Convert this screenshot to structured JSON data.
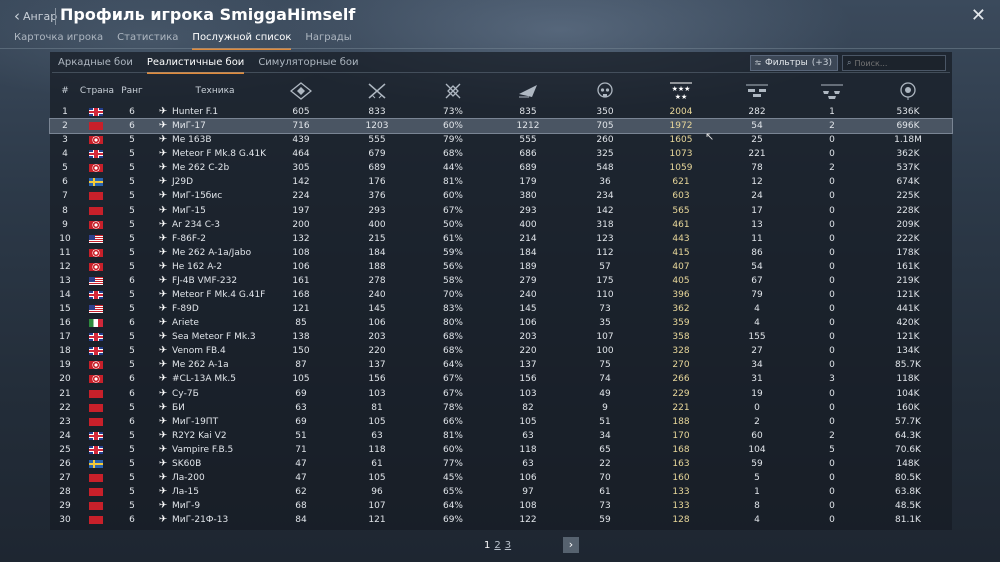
{
  "header": {
    "back_label": "Ангар",
    "title": "Профиль игрока SmiggaHimself",
    "close_icon": "close-icon"
  },
  "tabs": [
    {
      "label": "Карточка игрока",
      "active": false
    },
    {
      "label": "Статистика",
      "active": false
    },
    {
      "label": "Послужной список",
      "active": true
    },
    {
      "label": "Награды",
      "active": false
    }
  ],
  "subtabs": [
    {
      "label": "Аркадные бои",
      "active": false
    },
    {
      "label": "Реалистичные бои",
      "active": true
    },
    {
      "label": "Симуляторные бои",
      "active": false
    }
  ],
  "filter": {
    "label": "Фильтры",
    "count": "(+3)"
  },
  "search": {
    "placeholder": "Поиск..."
  },
  "columns": {
    "num": "#",
    "country": "Страна",
    "rank": "Ранг",
    "vehicle": "Техника",
    "icons": [
      "battles-icon",
      "missions-won-icon",
      "win-rate-icon",
      "respawns-icon",
      "deaths-icon",
      "air-kills-icon",
      "ground-kills-icon",
      "naval-kills-icon",
      "activity-icon"
    ]
  },
  "rows": [
    {
      "num": "1",
      "flag": "uk",
      "rank": "6",
      "name": "Hunter F.1",
      "v": [
        "605",
        "833",
        "73%",
        "835",
        "350",
        "2004",
        "282",
        "1",
        "536K"
      ]
    },
    {
      "num": "2",
      "flag": "ussr",
      "rank": "6",
      "name": "МиГ-17",
      "v": [
        "716",
        "1203",
        "60%",
        "1212",
        "705",
        "1972",
        "54",
        "2",
        "696K"
      ],
      "selected": true
    },
    {
      "num": "3",
      "flag": "de",
      "rank": "5",
      "name": "Me 163B",
      "v": [
        "439",
        "555",
        "79%",
        "555",
        "260",
        "1605",
        "25",
        "0",
        "1.18M"
      ]
    },
    {
      "num": "4",
      "flag": "uk",
      "rank": "5",
      "name": "Meteor F Mk.8 G.41K",
      "v": [
        "464",
        "679",
        "68%",
        "686",
        "325",
        "1073",
        "221",
        "0",
        "362K"
      ]
    },
    {
      "num": "5",
      "flag": "de",
      "rank": "5",
      "name": "Me 262 C-2b",
      "v": [
        "305",
        "689",
        "44%",
        "689",
        "548",
        "1059",
        "78",
        "2",
        "537K"
      ]
    },
    {
      "num": "6",
      "flag": "se",
      "rank": "5",
      "name": "J29D",
      "v": [
        "142",
        "176",
        "81%",
        "179",
        "36",
        "621",
        "12",
        "0",
        "674K"
      ]
    },
    {
      "num": "7",
      "flag": "ussr",
      "rank": "5",
      "name": "МиГ-15бис",
      "v": [
        "224",
        "376",
        "60%",
        "380",
        "234",
        "603",
        "24",
        "0",
        "225K"
      ]
    },
    {
      "num": "8",
      "flag": "ussr",
      "rank": "5",
      "name": "МиГ-15",
      "v": [
        "197",
        "293",
        "67%",
        "293",
        "142",
        "565",
        "17",
        "0",
        "228K"
      ]
    },
    {
      "num": "9",
      "flag": "de",
      "rank": "5",
      "name": "Ar 234 C-3",
      "v": [
        "200",
        "400",
        "50%",
        "400",
        "318",
        "461",
        "13",
        "0",
        "209K"
      ]
    },
    {
      "num": "10",
      "flag": "us",
      "rank": "5",
      "name": "F-86F-2",
      "v": [
        "132",
        "215",
        "61%",
        "214",
        "123",
        "443",
        "11",
        "0",
        "222K"
      ]
    },
    {
      "num": "11",
      "flag": "de",
      "rank": "5",
      "name": "Me 262 A-1a/Jabo",
      "v": [
        "108",
        "184",
        "59%",
        "184",
        "112",
        "415",
        "86",
        "0",
        "178K"
      ]
    },
    {
      "num": "12",
      "flag": "de",
      "rank": "5",
      "name": "He 162 A-2",
      "v": [
        "106",
        "188",
        "56%",
        "189",
        "57",
        "407",
        "54",
        "0",
        "161K"
      ]
    },
    {
      "num": "13",
      "flag": "us",
      "rank": "6",
      "name": "FJ-4B VMF-232",
      "v": [
        "161",
        "278",
        "58%",
        "279",
        "175",
        "405",
        "67",
        "0",
        "219K"
      ]
    },
    {
      "num": "14",
      "flag": "uk",
      "rank": "5",
      "name": "Meteor F Mk.4 G.41F",
      "v": [
        "168",
        "240",
        "70%",
        "240",
        "110",
        "396",
        "79",
        "0",
        "121K"
      ]
    },
    {
      "num": "15",
      "flag": "us",
      "rank": "5",
      "name": "F-89D",
      "v": [
        "121",
        "145",
        "83%",
        "145",
        "73",
        "362",
        "4",
        "0",
        "441K"
      ]
    },
    {
      "num": "16",
      "flag": "it",
      "rank": "6",
      "name": "Ariete",
      "v": [
        "85",
        "106",
        "80%",
        "106",
        "35",
        "359",
        "4",
        "0",
        "420K"
      ]
    },
    {
      "num": "17",
      "flag": "uk",
      "rank": "5",
      "name": "Sea Meteor F Mk.3",
      "v": [
        "138",
        "203",
        "68%",
        "203",
        "107",
        "358",
        "155",
        "0",
        "121K"
      ]
    },
    {
      "num": "18",
      "flag": "uk",
      "rank": "5",
      "name": "Venom FB.4",
      "v": [
        "150",
        "220",
        "68%",
        "220",
        "100",
        "328",
        "27",
        "0",
        "134K"
      ]
    },
    {
      "num": "19",
      "flag": "de",
      "rank": "5",
      "name": "Me 262 A-1a",
      "v": [
        "87",
        "137",
        "64%",
        "137",
        "75",
        "270",
        "34",
        "0",
        "85.7K"
      ]
    },
    {
      "num": "20",
      "flag": "de",
      "rank": "6",
      "name": "#CL-13A Mk.5",
      "v": [
        "105",
        "156",
        "67%",
        "156",
        "74",
        "266",
        "31",
        "3",
        "118K"
      ]
    },
    {
      "num": "21",
      "flag": "ussr",
      "rank": "6",
      "name": "Су-7Б",
      "v": [
        "69",
        "103",
        "67%",
        "103",
        "49",
        "229",
        "19",
        "0",
        "104K"
      ]
    },
    {
      "num": "22",
      "flag": "ussr",
      "rank": "5",
      "name": "БИ",
      "v": [
        "63",
        "81",
        "78%",
        "82",
        "9",
        "221",
        "0",
        "0",
        "160K"
      ]
    },
    {
      "num": "23",
      "flag": "ussr",
      "rank": "6",
      "name": "МиГ-19ПТ",
      "v": [
        "69",
        "105",
        "66%",
        "105",
        "51",
        "188",
        "2",
        "0",
        "57.7K"
      ]
    },
    {
      "num": "24",
      "flag": "uk",
      "rank": "5",
      "name": "R2Y2 Kai V2",
      "v": [
        "51",
        "63",
        "81%",
        "63",
        "34",
        "170",
        "60",
        "2",
        "64.3K"
      ]
    },
    {
      "num": "25",
      "flag": "uk",
      "rank": "5",
      "name": "Vampire F.B.5",
      "v": [
        "71",
        "118",
        "60%",
        "118",
        "65",
        "168",
        "104",
        "5",
        "70.6K"
      ]
    },
    {
      "num": "26",
      "flag": "se",
      "rank": "5",
      "name": "SK60B",
      "v": [
        "47",
        "61",
        "77%",
        "63",
        "22",
        "163",
        "59",
        "0",
        "148K"
      ]
    },
    {
      "num": "27",
      "flag": "ussr",
      "rank": "5",
      "name": "Ла-200",
      "v": [
        "47",
        "105",
        "45%",
        "106",
        "70",
        "160",
        "5",
        "0",
        "80.5K"
      ]
    },
    {
      "num": "28",
      "flag": "ussr",
      "rank": "5",
      "name": "Ла-15",
      "v": [
        "62",
        "96",
        "65%",
        "97",
        "61",
        "133",
        "1",
        "0",
        "63.8K"
      ]
    },
    {
      "num": "29",
      "flag": "ussr",
      "rank": "5",
      "name": "МиГ-9",
      "v": [
        "68",
        "107",
        "64%",
        "108",
        "73",
        "133",
        "8",
        "0",
        "48.5K"
      ]
    },
    {
      "num": "30",
      "flag": "ussr",
      "rank": "6",
      "name": "МиГ-21Ф-13",
      "v": [
        "84",
        "121",
        "69%",
        "122",
        "59",
        "128",
        "4",
        "0",
        "81.1K"
      ]
    }
  ],
  "pagination": {
    "pages": [
      "1",
      "2",
      "3"
    ],
    "current": "1",
    "next_icon": "chevron-right-icon"
  }
}
